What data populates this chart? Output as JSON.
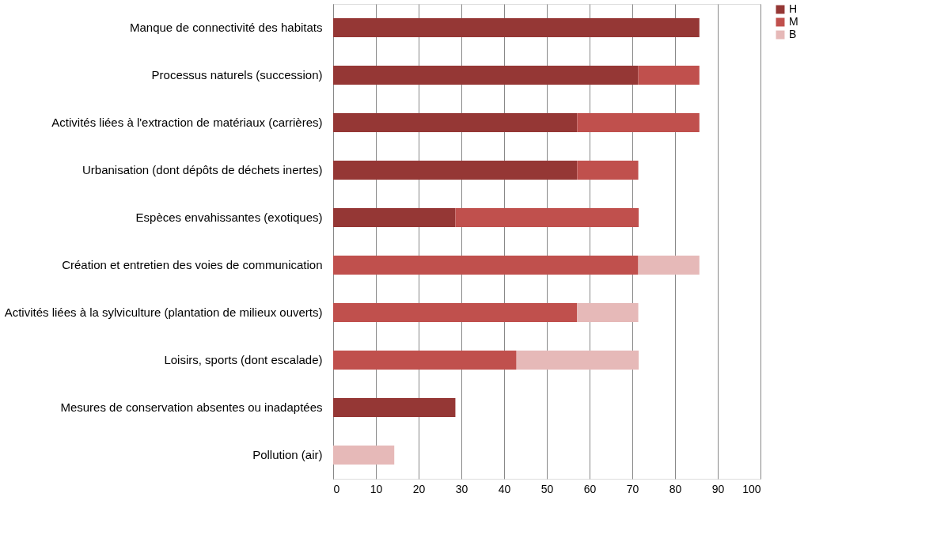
{
  "chart_data": {
    "type": "bar",
    "orientation": "horizontal",
    "stacked": true,
    "categories": [
      "Manque de connectivité des habitats",
      "Processus naturels (succession)",
      "Activités liées à l'extraction de matériaux (carrières)",
      "Urbanisation (dont dépôts de déchets inertes)",
      "Espèces envahissantes (exotiques)",
      "Création et entretien des voies de communication",
      "Activités liées à la sylviculture (plantation de milieux ouverts)",
      "Loisirs, sports (dont escalade)",
      "Mesures de conservation absentes ou inadaptées",
      "Pollution (air)"
    ],
    "series": [
      {
        "name": "H",
        "color": "#953735",
        "values": [
          85.7,
          71.4,
          57.1,
          57.1,
          28.6,
          null,
          null,
          null,
          28.6,
          null
        ]
      },
      {
        "name": "M",
        "color": "#c0504d",
        "values": [
          null,
          14.3,
          28.6,
          14.3,
          42.9,
          71.4,
          57.1,
          42.9,
          null,
          null
        ]
      },
      {
        "name": "B",
        "color": "#e6b9b8",
        "values": [
          null,
          null,
          null,
          null,
          null,
          14.3,
          14.3,
          28.6,
          null,
          14.3
        ]
      }
    ],
    "xlim": [
      0,
      100
    ],
    "xticks": [
      0,
      10,
      20,
      30,
      40,
      50,
      60,
      70,
      80,
      90,
      100
    ],
    "grid": "x",
    "legend": "right"
  }
}
